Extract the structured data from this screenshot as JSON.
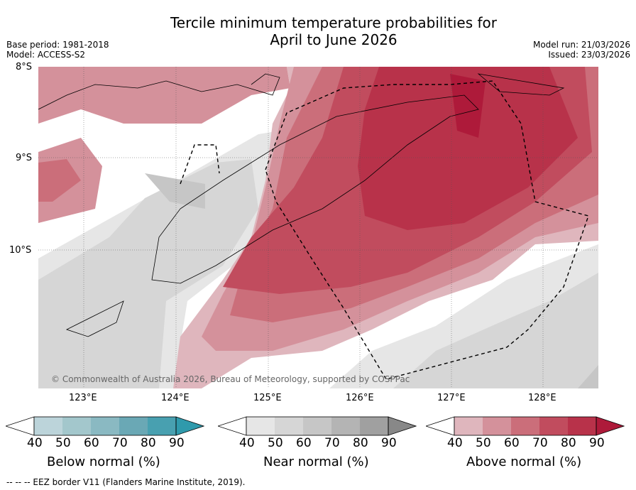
{
  "title_line1": "Tercile minimum temperature probabilities for",
  "title_line2": "April to June 2026",
  "base_period": "Base period: 1981-2018",
  "model": "Model: ACCESS-S2",
  "model_run": "Model run: 21/03/2026",
  "issued": "Issued: 23/03/2026",
  "lat_labels": [
    "8°S",
    "9°S",
    "10°S"
  ],
  "lon_labels": [
    "123°E",
    "124°E",
    "125°E",
    "126°E",
    "127°E",
    "128°E"
  ],
  "copyright": "© Commonwealth of Australia 2026, Bureau of Meteorology, supported by COSPPac",
  "colorbars": [
    {
      "label": "Below normal (%)",
      "ticks": [
        "40",
        "50",
        "60",
        "70",
        "80",
        "90"
      ],
      "colors": [
        "#ffffff",
        "#bcd4da",
        "#a3c7cc",
        "#8ab9c2",
        "#6aa8b5",
        "#48a0b0",
        "#2f9aac"
      ]
    },
    {
      "label": "Near normal (%)",
      "ticks": [
        "40",
        "50",
        "60",
        "70",
        "80",
        "90"
      ],
      "colors": [
        "#ffffff",
        "#e6e6e6",
        "#d6d6d6",
        "#c6c6c6",
        "#b4b4b4",
        "#a0a0a0",
        "#888888"
      ]
    },
    {
      "label": "Above normal (%)",
      "ticks": [
        "40",
        "50",
        "60",
        "70",
        "80",
        "90"
      ],
      "colors": [
        "#ffffff",
        "#dfb6bd",
        "#d4919b",
        "#cb6e7a",
        "#c14c5e",
        "#b8324a",
        "#ae1a3a"
      ]
    }
  ],
  "footnote": "--  --  -- EEZ border V11 (Flanders Marine Institute, 2019)."
}
